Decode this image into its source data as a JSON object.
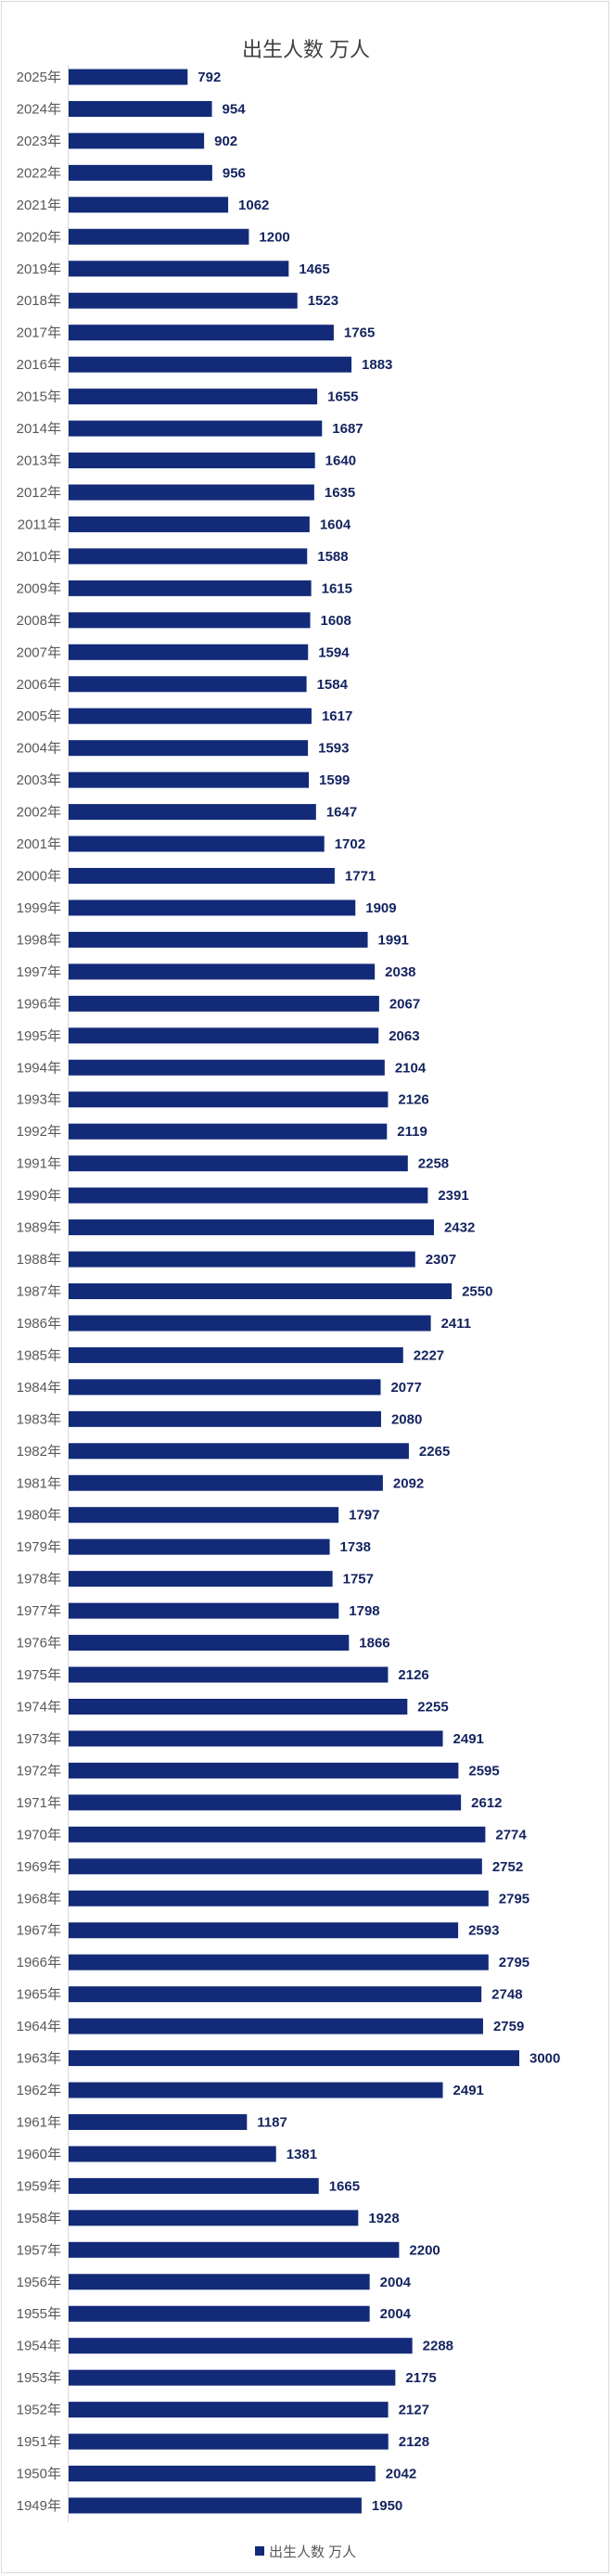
{
  "chart_data": {
    "type": "bar",
    "orientation": "horizontal",
    "title": "出生人数 万人",
    "xlabel": "",
    "ylabel": "",
    "xlim": [
      0,
      3000
    ],
    "grid": false,
    "legend": {
      "position": "bottom",
      "entries": [
        "出生人数 万人"
      ]
    },
    "bar_color": "#122a78",
    "label_color": "#13235f",
    "categories": [
      "2025年",
      "2024年",
      "2023年",
      "2022年",
      "2021年",
      "2020年",
      "2019年",
      "2018年",
      "2017年",
      "2016年",
      "2015年",
      "2014年",
      "2013年",
      "2012年",
      "2011年",
      "2010年",
      "2009年",
      "2008年",
      "2007年",
      "2006年",
      "2005年",
      "2004年",
      "2003年",
      "2002年",
      "2001年",
      "2000年",
      "1999年",
      "1998年",
      "1997年",
      "1996年",
      "1995年",
      "1994年",
      "1993年",
      "1992年",
      "1991年",
      "1990年",
      "1989年",
      "1988年",
      "1987年",
      "1986年",
      "1985年",
      "1984年",
      "1983年",
      "1982年",
      "1981年",
      "1980年",
      "1979年",
      "1978年",
      "1977年",
      "1976年",
      "1975年",
      "1974年",
      "1973年",
      "1972年",
      "1971年",
      "1970年",
      "1969年",
      "1968年",
      "1967年",
      "1966年",
      "1965年",
      "1964年",
      "1963年",
      "1962年",
      "1961年",
      "1960年",
      "1959年",
      "1958年",
      "1957年",
      "1956年",
      "1955年",
      "1954年",
      "1953年",
      "1952年",
      "1951年",
      "1950年",
      "1949年"
    ],
    "series": [
      {
        "name": "出生人数 万人",
        "values": [
          792,
          954,
          902,
          956,
          1062,
          1200,
          1465,
          1523,
          1765,
          1883,
          1655,
          1687,
          1640,
          1635,
          1604,
          1588,
          1615,
          1608,
          1594,
          1584,
          1617,
          1593,
          1599,
          1647,
          1702,
          1771,
          1909,
          1991,
          2038,
          2067,
          2063,
          2104,
          2126,
          2119,
          2258,
          2391,
          2432,
          2307,
          2550,
          2411,
          2227,
          2077,
          2080,
          2265,
          2092,
          1797,
          1738,
          1757,
          1798,
          1866,
          2126,
          2255,
          2491,
          2595,
          2612,
          2774,
          2752,
          2795,
          2593,
          2795,
          2748,
          2759,
          3000,
          2491,
          1187,
          1381,
          1665,
          1928,
          2200,
          2004,
          2004,
          2288,
          2175,
          2127,
          2128,
          2042,
          1950
        ]
      }
    ]
  }
}
